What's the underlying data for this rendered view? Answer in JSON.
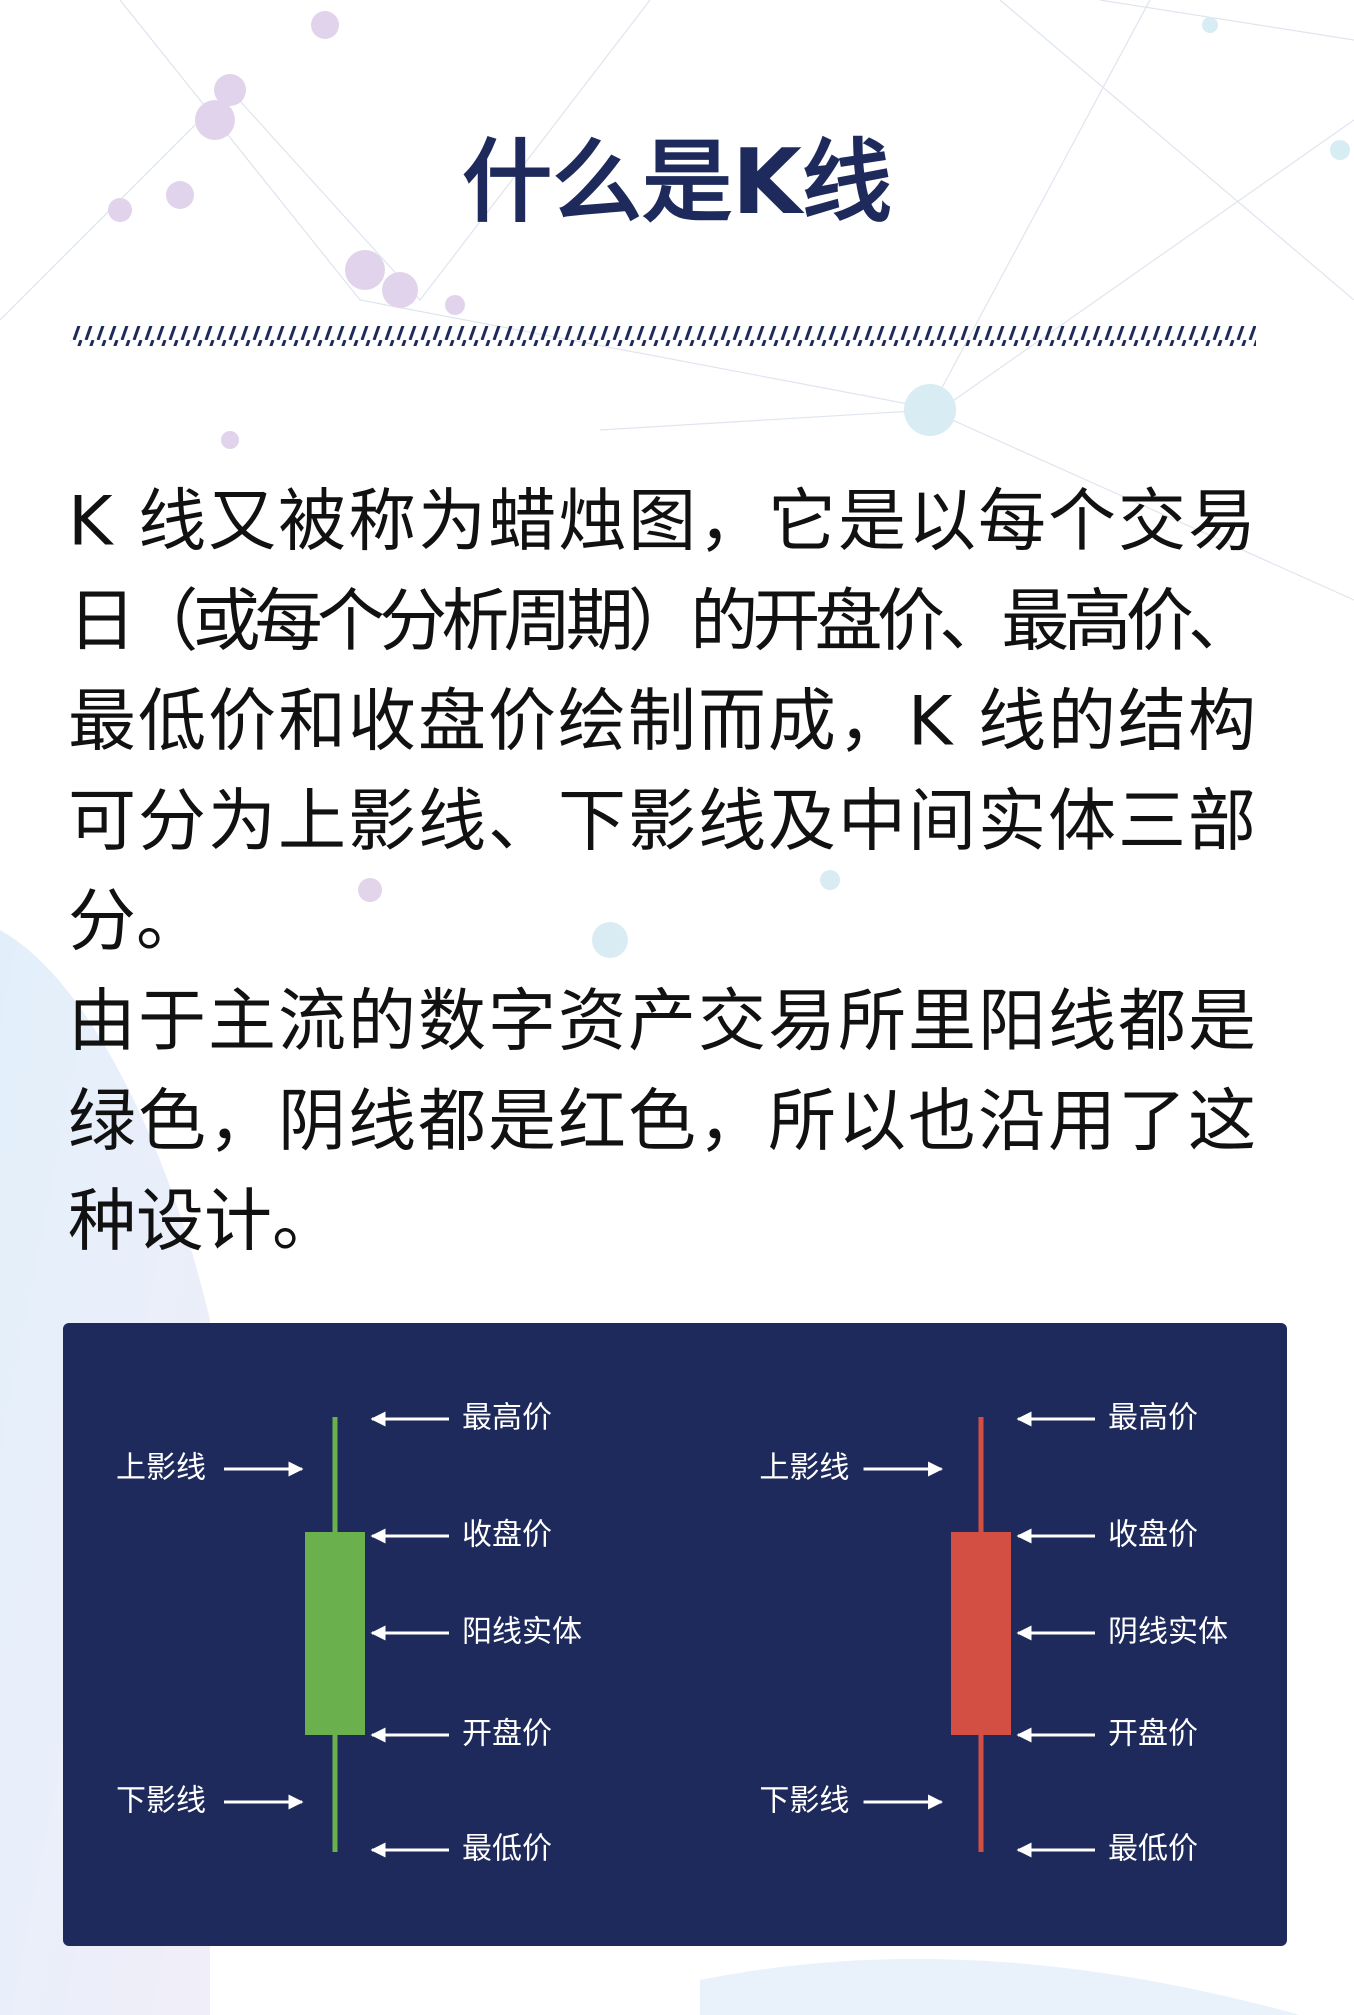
{
  "header": {
    "title": "什么是K线"
  },
  "body": {
    "paragraphs": [
      [
        "K 线又被称为蜡烛图，它是以每个交易",
        "日（或每个分析周期）的开盘价、最高价、",
        "最低价和收盘价绘制而成，K 线的结构",
        "可分为上影线、下影线及中间实体三部",
        "分。"
      ],
      [
        "由于主流的数字资产交易所里阳线都是",
        "绿色，阴线都是红色，所以也沿用了这",
        "种设计。"
      ]
    ]
  },
  "diagram": {
    "candles": [
      {
        "upper_shadow": "上影线",
        "lower_shadow": "下影线",
        "high": "最高价",
        "close": "收盘价",
        "body": "阳线实体",
        "open": "开盘价",
        "low": "最低价"
      },
      {
        "upper_shadow": "上影线",
        "lower_shadow": "下影线",
        "high": "最高价",
        "close": "收盘价",
        "body": "阴线实体",
        "open": "开盘价",
        "low": "最低价"
      }
    ]
  }
}
